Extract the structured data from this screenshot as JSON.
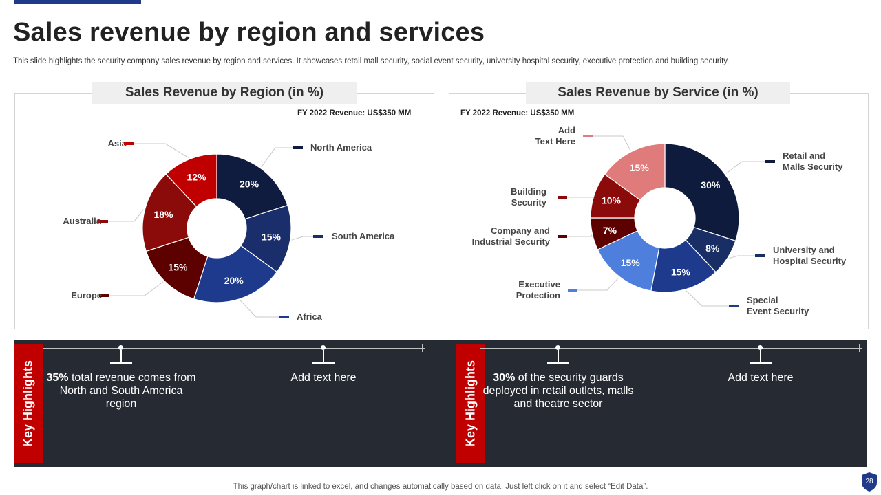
{
  "slide": {
    "title": "Sales revenue by region and services",
    "subtitle": "This slide highlights the security company sales revenue by region and services. It showcases retail mall security, social event security, university hospital security, executive protection and building security.",
    "footer": "This graph/chart is linked to excel,  and changes automatically based on data. Just left click on it and select “Edit Data”.",
    "page_number": "28"
  },
  "chart_data": [
    {
      "type": "pie",
      "title": "Sales Revenue by Region (in %)",
      "annotation": "FY 2022 Revenue: US$350 MM",
      "categories": [
        "North America",
        "South America",
        "Africa",
        "Europe",
        "Australia",
        "Asia"
      ],
      "values": [
        20,
        15,
        20,
        15,
        18,
        12
      ],
      "value_labels": [
        "20%",
        "15%",
        "20%",
        "15%",
        "18%",
        "12%"
      ],
      "colors": [
        "#101c3f",
        "#1a2e6b",
        "#1e3a8c",
        "#5c0000",
        "#8b0a0a",
        "#c00000"
      ],
      "legend_label_lines": [
        [
          "North America"
        ],
        [
          "South America"
        ],
        [
          "Africa"
        ],
        [
          "Europe"
        ],
        [
          "Australia"
        ],
        [
          "Asia"
        ]
      ]
    },
    {
      "type": "pie",
      "title": "Sales Revenue by Service (in %)",
      "annotation": "FY 2022 Revenue: US$350 MM",
      "categories": [
        "Retail and Malls Security",
        "University and Hospital Security",
        "Special Event Security",
        "Executive Protection",
        "Company and Industrial Security",
        "Building Security",
        "Add Text Here"
      ],
      "values": [
        30,
        8,
        15,
        15,
        7,
        10,
        15
      ],
      "value_labels": [
        "30%",
        "8%",
        "15%",
        "15%",
        "7%",
        "10%",
        "15%"
      ],
      "colors": [
        "#0f1b3d",
        "#1a2e66",
        "#1e3a8c",
        "#4f7fdc",
        "#5c0000",
        "#8b0a0a",
        "#e07b7b"
      ],
      "legend_label_lines": [
        [
          "Retail and",
          "Malls Security"
        ],
        [
          "University  and",
          "Hospital  Security"
        ],
        [
          "Special",
          "Event Security"
        ],
        [
          "Executive",
          "Protection"
        ],
        [
          "Company and",
          "Industrial Security"
        ],
        [
          "Building",
          "Security"
        ],
        [
          "Add",
          "Text Here"
        ]
      ]
    }
  ],
  "highlights": {
    "label": "Key Highlights",
    "left": [
      {
        "bold": "35%",
        "text": " total revenue comes from North and South America region"
      },
      {
        "bold": "",
        "text": "Add text here"
      }
    ],
    "right": [
      {
        "bold": "30%",
        "text": " of the security guards deployed in retail outlets, malls and theatre sector"
      },
      {
        "bold": "",
        "text": "Add text here"
      }
    ]
  }
}
